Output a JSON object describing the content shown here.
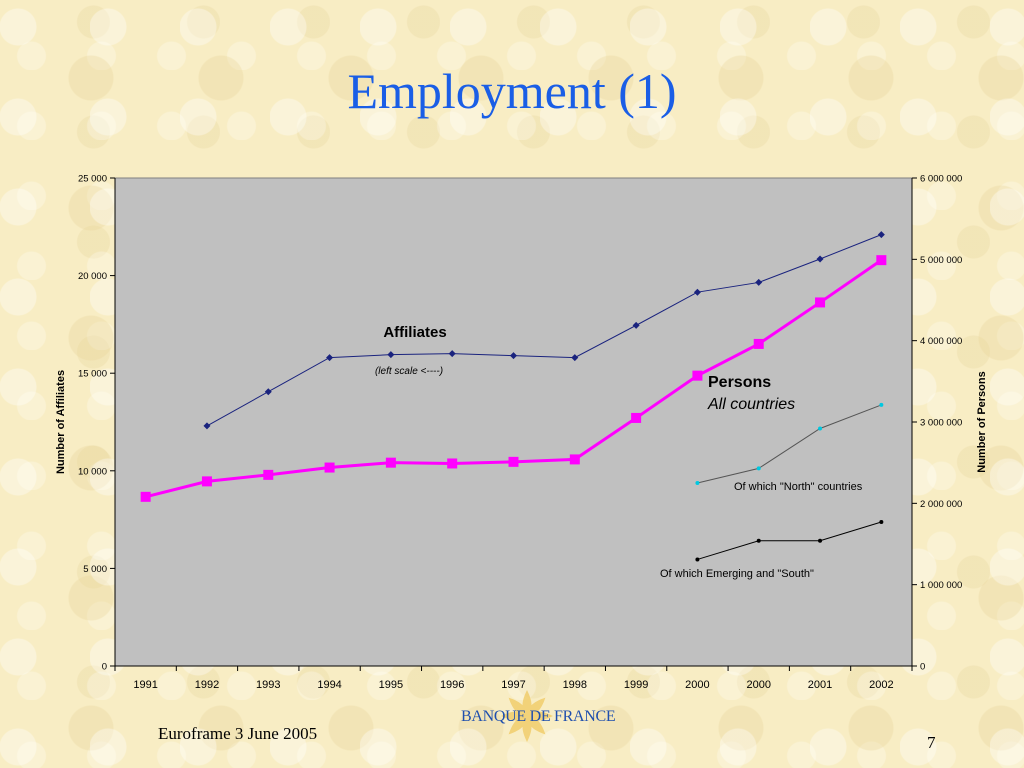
{
  "slide": {
    "title": "Employment (1)",
    "footer_text": "Euroframe 3 June 2005",
    "page_number": "7",
    "logo_text": "BANQUE DE FRANCE"
  },
  "chart_data": {
    "type": "line",
    "categories": [
      "1991",
      "1992",
      "1993",
      "1994",
      "1995",
      "1996",
      "1997",
      "1998",
      "1999",
      "2000",
      "2000",
      "2001",
      "2002"
    ],
    "ylabel_left": "Number of Affiliates",
    "ylabel_right": "Number of Persons",
    "ylim_left": [
      0,
      25000
    ],
    "ylim_right": [
      0,
      6000000
    ],
    "left_ticks": [
      "0",
      "5 000",
      "10 000",
      "15 000",
      "20 000",
      "25 000"
    ],
    "right_ticks": [
      "0",
      "1 000 000",
      "2 000 000",
      "3 000 000",
      "4 000 000",
      "5 000 000",
      "6 000 000"
    ],
    "plot_background": "#c0c0c0",
    "grid": false,
    "series": [
      {
        "name": "Affiliates",
        "axis": "left",
        "color": "#1a237e",
        "marker": "diamond",
        "values": [
          null,
          12300,
          14050,
          15800,
          15950,
          16000,
          15900,
          15800,
          17450,
          19150,
          19650,
          20850,
          22100
        ]
      },
      {
        "name": "Persons",
        "axis": "right",
        "color": "#ff00ff",
        "marker": "square",
        "values": [
          2080000,
          2270000,
          2350000,
          2440000,
          2500000,
          2490000,
          2510000,
          2540000,
          3050000,
          3570000,
          3960000,
          4470000,
          4990000
        ]
      },
      {
        "name": "Of which \"North\" countries",
        "axis": "right",
        "color": "#555555",
        "marker_color": "#00c8e0",
        "marker": "dot",
        "values": [
          null,
          null,
          null,
          null,
          null,
          null,
          null,
          null,
          null,
          2250000,
          2430000,
          2920000,
          3210000
        ]
      },
      {
        "name": "Of which Emerging and \"South\"",
        "axis": "right",
        "color": "#000000",
        "marker": "dot",
        "values": [
          null,
          null,
          null,
          null,
          null,
          null,
          null,
          null,
          null,
          1310000,
          1540000,
          1540000,
          1770000
        ]
      }
    ],
    "annotations": {
      "affiliates_label": "Affiliates",
      "affiliates_note": "(left scale <----)",
      "persons_label": "Persons",
      "persons_sublabel": "All countries",
      "north_label": "Of which \"North\" countries",
      "south_label": "Of which Emerging and \"South\""
    }
  }
}
